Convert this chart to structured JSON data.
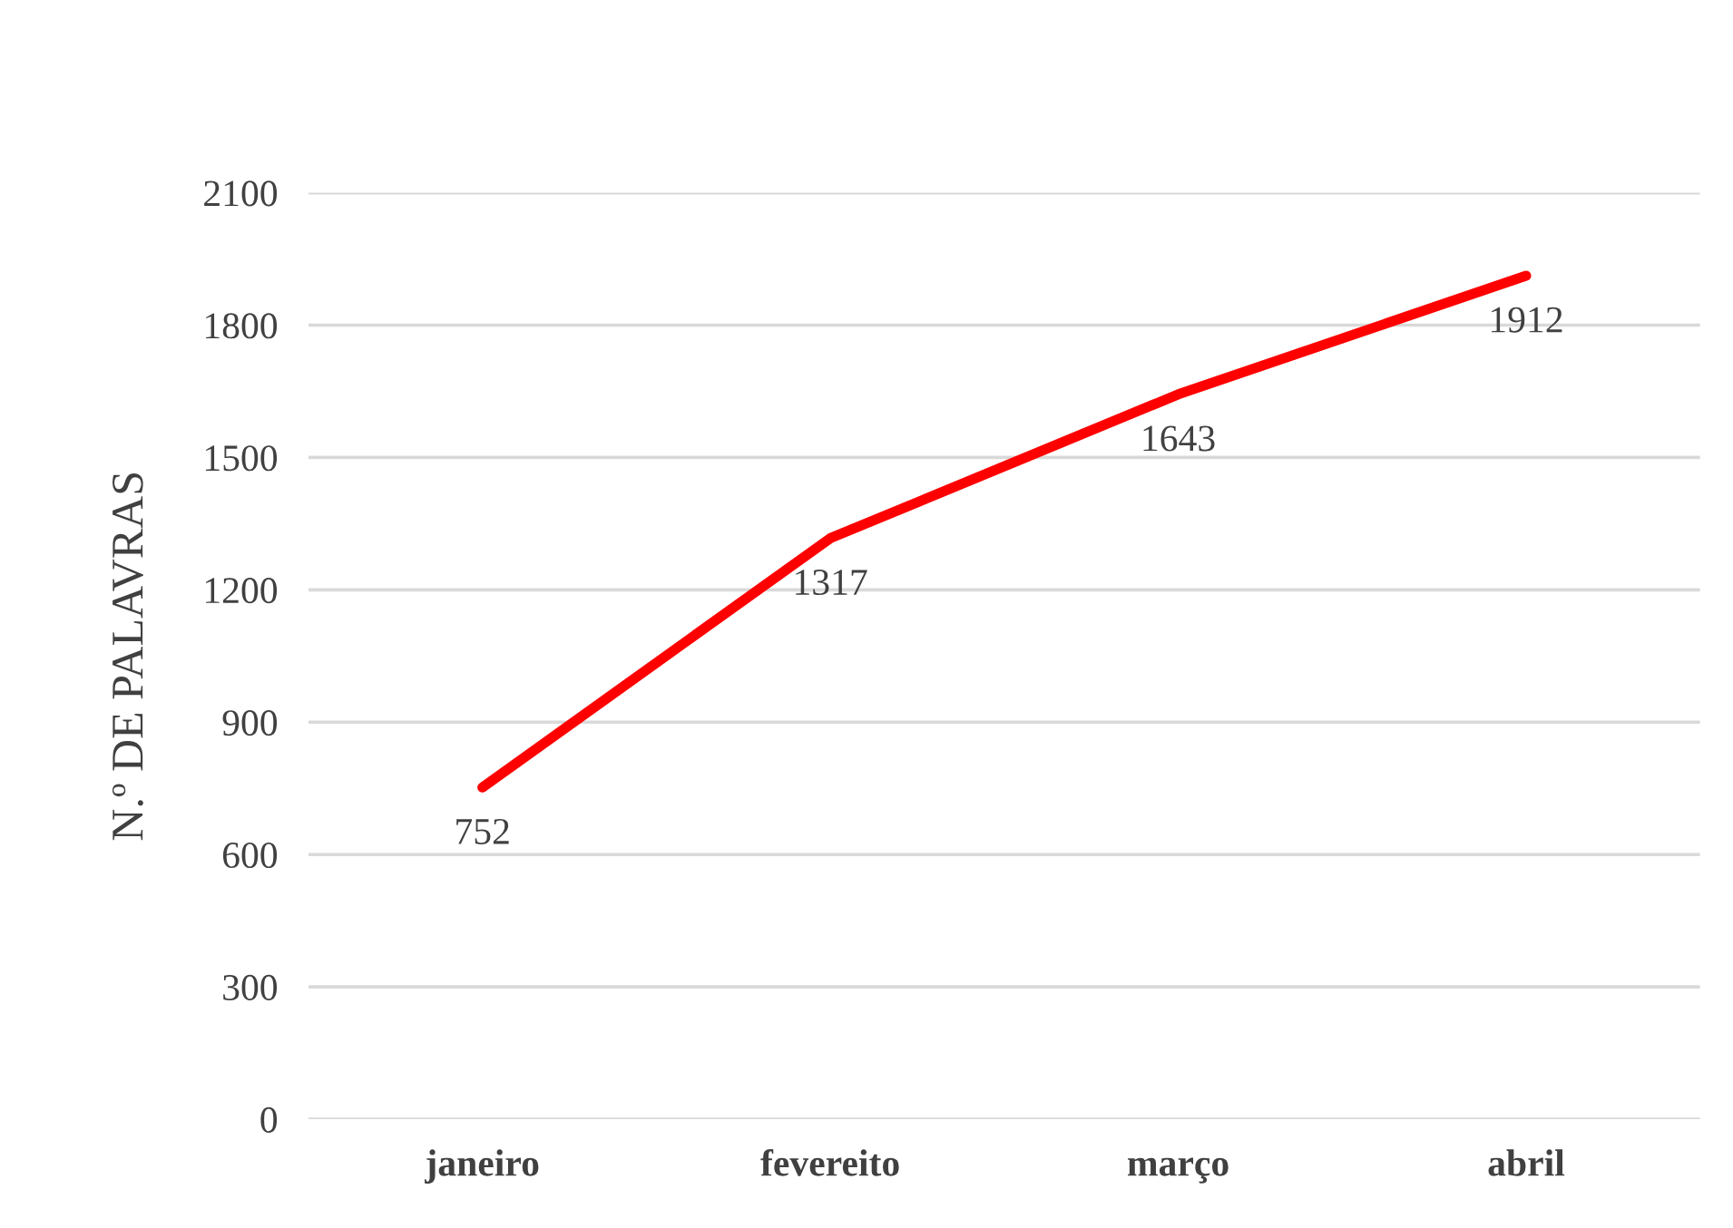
{
  "chart_data": {
    "type": "line",
    "ylabel": "N.º DE PALAVRAS",
    "categories": [
      "janeiro",
      "fevereito",
      "março",
      "abril"
    ],
    "series": [
      {
        "color": "#ff0000",
        "values": [
          752,
          1317,
          1643,
          1912
        ]
      }
    ],
    "ylim": [
      0,
      2100
    ],
    "yticks": [
      0,
      300,
      600,
      900,
      1200,
      1500,
      1800,
      2100
    ],
    "grid": "y",
    "data_labels": true,
    "marker": "none",
    "line_style": "solid",
    "legend": false
  }
}
